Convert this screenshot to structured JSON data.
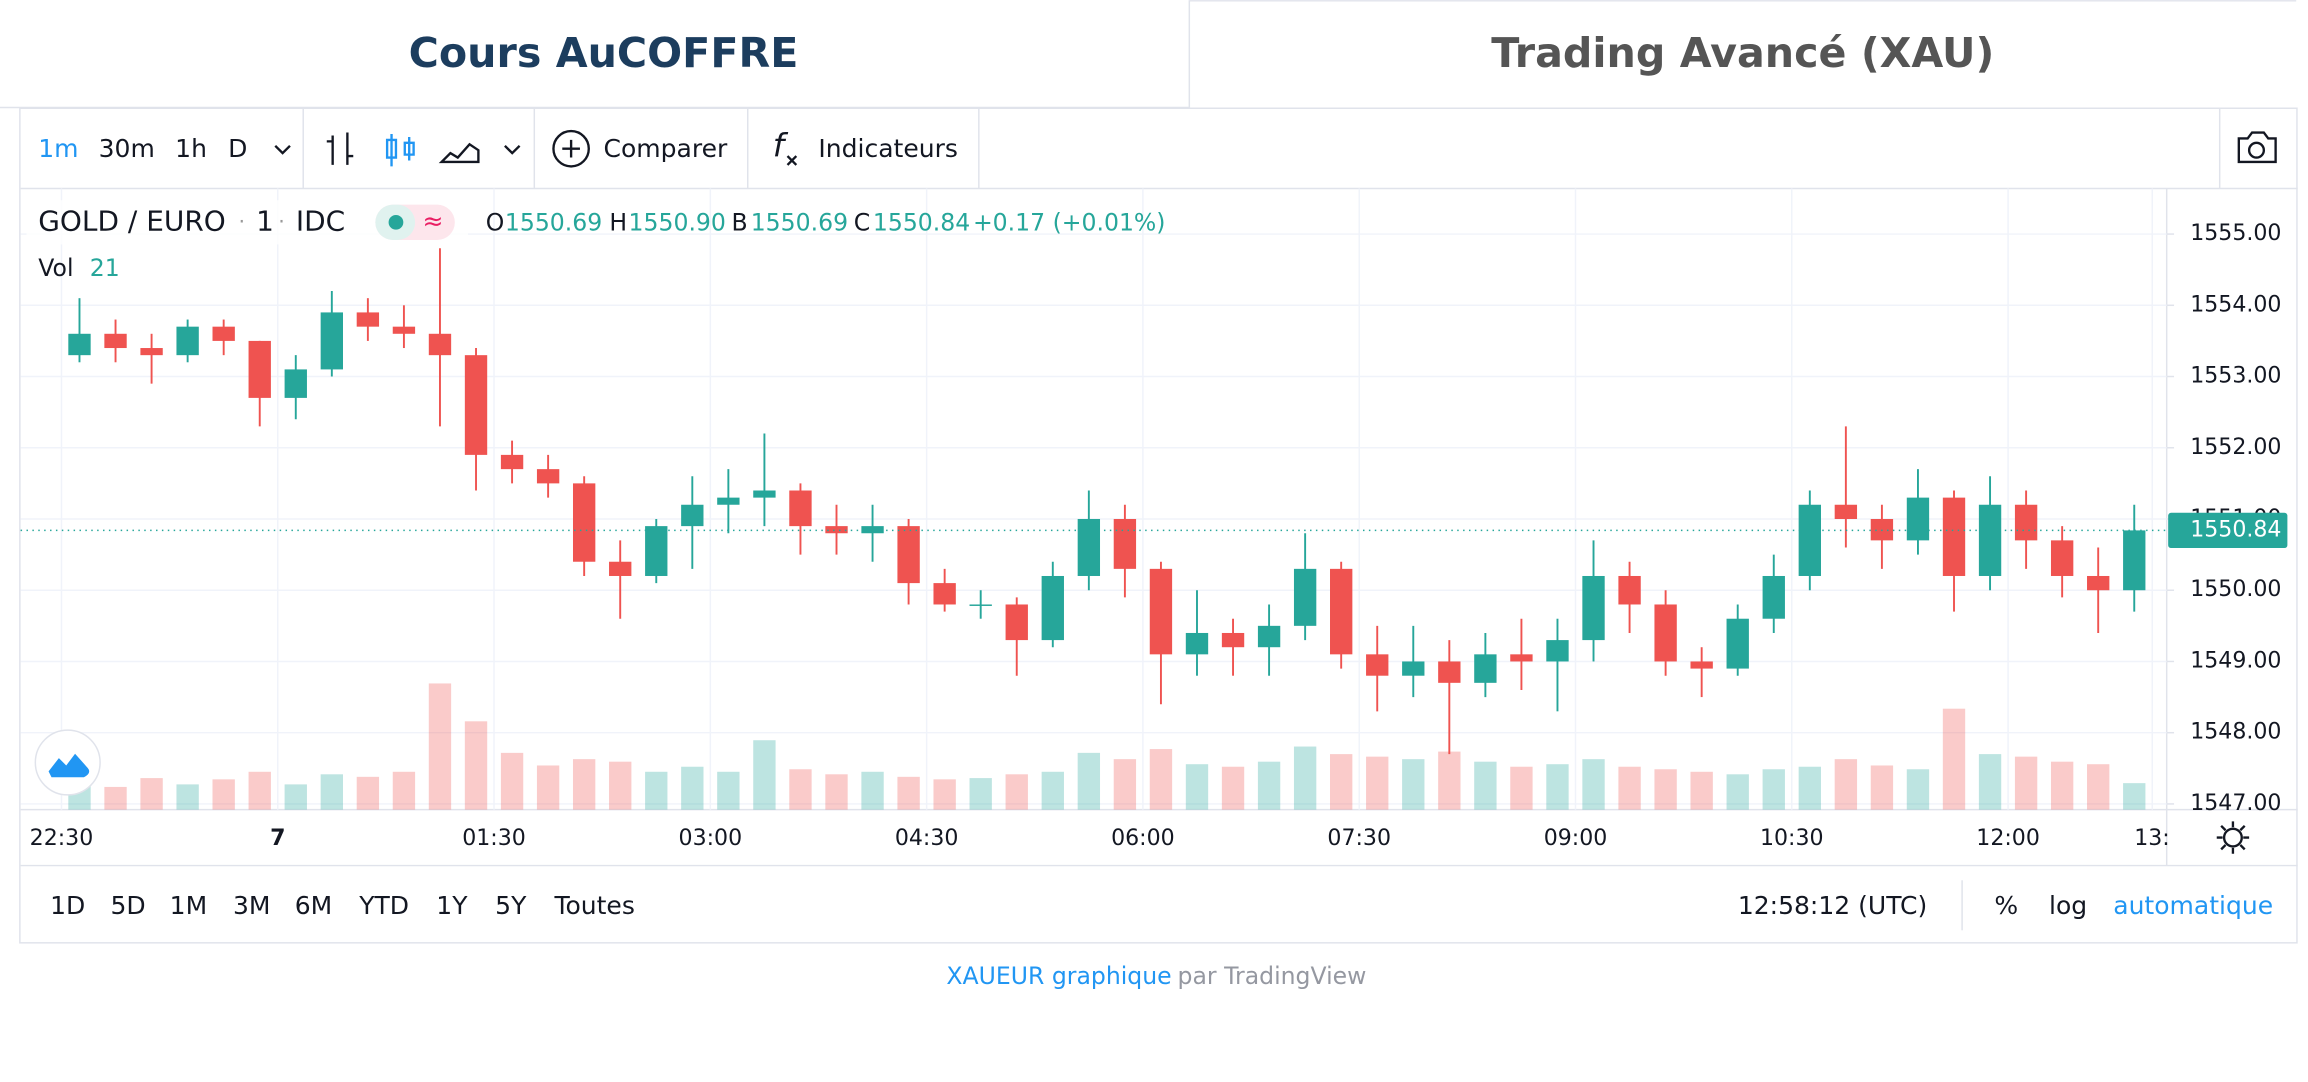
{
  "tabs": [
    "Cours AuCOFFRE",
    "Trading Avancé (XAU)"
  ],
  "toolbar": {
    "intervals": [
      "1m",
      "30m",
      "1h",
      "D"
    ],
    "compare": "Comparer",
    "indicators": "Indicateurs"
  },
  "legend": {
    "symbol": "GOLD / EURO",
    "interval": "1",
    "exchange": "IDC",
    "ohlc": [
      {
        "label": "O",
        "value": "1550.69"
      },
      {
        "label": "H",
        "value": "1550.90"
      },
      {
        "label": "B",
        "value": "1550.69"
      },
      {
        "label": "C",
        "value": "1550.84"
      }
    ],
    "change": "+0.17 (+0.01%)",
    "volume_label": "Vol"
  },
  "chart_data": {
    "type": "candlestick",
    "categories": [
      "22:30",
      "22:45",
      "23:00",
      "23:15",
      "23:30",
      "23:45",
      "00:00",
      "00:15",
      "00:30",
      "00:45",
      "01:00",
      "01:15",
      "01:30",
      "01:45",
      "02:00",
      "02:15",
      "02:30",
      "02:45",
      "03:00",
      "03:15",
      "03:30",
      "03:45",
      "04:00",
      "04:15",
      "04:30",
      "04:45",
      "05:00",
      "05:15",
      "05:30",
      "05:45",
      "06:00",
      "06:15",
      "06:30",
      "06:45",
      "07:00",
      "07:15",
      "07:30",
      "07:45",
      "08:00",
      "08:15",
      "08:30",
      "08:45",
      "09:00",
      "09:15",
      "09:30",
      "09:45",
      "10:00",
      "10:15",
      "10:30",
      "10:45",
      "11:00",
      "11:15",
      "11:30",
      "11:45",
      "12:00",
      "12:15",
      "12:30",
      "12:45"
    ],
    "open": [
      1553.3,
      1553.6,
      1553.4,
      1553.3,
      1553.7,
      1553.5,
      1552.7,
      1553.1,
      1553.9,
      1553.7,
      1553.6,
      1553.3,
      1551.9,
      1551.7,
      1551.5,
      1550.4,
      1550.2,
      1550.9,
      1551.2,
      1551.3,
      1551.4,
      1550.9,
      1550.8,
      1550.9,
      1550.1,
      1549.8,
      1549.8,
      1549.3,
      1550.2,
      1551.0,
      1550.3,
      1549.1,
      1549.4,
      1549.2,
      1549.5,
      1550.3,
      1549.1,
      1548.8,
      1549.0,
      1548.7,
      1549.1,
      1549.0,
      1549.3,
      1550.2,
      1549.8,
      1549.0,
      1548.9,
      1549.6,
      1550.2,
      1551.2,
      1551.0,
      1550.7,
      1551.3,
      1550.2,
      1551.2,
      1550.7,
      1550.2,
      1550.0
    ],
    "high": [
      1554.1,
      1553.8,
      1553.6,
      1553.8,
      1553.8,
      1553.5,
      1553.3,
      1554.2,
      1554.1,
      1554.0,
      1554.8,
      1553.4,
      1552.1,
      1551.9,
      1551.6,
      1550.7,
      1551.0,
      1551.6,
      1551.7,
      1552.2,
      1551.5,
      1551.2,
      1551.2,
      1551.0,
      1550.3,
      1550.0,
      1549.9,
      1550.4,
      1551.4,
      1551.2,
      1550.4,
      1550.0,
      1549.6,
      1549.8,
      1550.8,
      1550.4,
      1549.5,
      1549.5,
      1549.3,
      1549.4,
      1549.6,
      1549.6,
      1550.7,
      1550.4,
      1550.0,
      1549.2,
      1549.8,
      1550.5,
      1551.4,
      1552.3,
      1551.2,
      1551.7,
      1551.4,
      1551.6,
      1551.4,
      1550.9,
      1550.6,
      1551.2
    ],
    "low": [
      1553.2,
      1553.2,
      1552.9,
      1553.2,
      1553.3,
      1552.3,
      1552.4,
      1553.0,
      1553.5,
      1553.4,
      1552.3,
      1551.4,
      1551.5,
      1551.3,
      1550.2,
      1549.6,
      1550.1,
      1550.3,
      1550.8,
      1550.9,
      1550.5,
      1550.5,
      1550.4,
      1549.8,
      1549.7,
      1549.6,
      1548.8,
      1549.2,
      1550.0,
      1549.9,
      1548.4,
      1548.8,
      1548.8,
      1548.8,
      1549.3,
      1548.9,
      1548.3,
      1548.5,
      1547.7,
      1548.5,
      1548.6,
      1548.3,
      1549.0,
      1549.4,
      1548.8,
      1548.5,
      1548.8,
      1549.4,
      1550.0,
      1550.6,
      1550.3,
      1550.5,
      1549.7,
      1550.0,
      1550.3,
      1549.9,
      1549.4,
      1549.7
    ],
    "close": [
      1553.6,
      1553.4,
      1553.3,
      1553.7,
      1553.5,
      1552.7,
      1553.1,
      1553.9,
      1553.7,
      1553.6,
      1553.3,
      1551.9,
      1551.7,
      1551.5,
      1550.4,
      1550.2,
      1550.9,
      1551.2,
      1551.3,
      1551.4,
      1550.9,
      1550.8,
      1550.9,
      1550.1,
      1549.8,
      1549.8,
      1549.3,
      1550.2,
      1551.0,
      1550.3,
      1549.1,
      1549.4,
      1549.2,
      1549.5,
      1550.3,
      1549.1,
      1548.8,
      1549.0,
      1548.7,
      1549.1,
      1549.0,
      1549.3,
      1550.2,
      1549.8,
      1549.0,
      1548.9,
      1549.6,
      1550.2,
      1551.2,
      1551.0,
      1550.7,
      1551.3,
      1550.2,
      1551.2,
      1550.7,
      1550.2,
      1550.0,
      1550.84
    ],
    "volume": [
      22,
      18,
      25,
      20,
      24,
      30,
      20,
      28,
      26,
      30,
      100,
      70,
      45,
      35,
      40,
      38,
      30,
      34,
      30,
      55,
      32,
      28,
      30,
      26,
      24,
      25,
      28,
      30,
      45,
      40,
      48,
      36,
      34,
      38,
      50,
      44,
      42,
      40,
      46,
      38,
      34,
      36,
      40,
      34,
      32,
      30,
      28,
      32,
      34,
      40,
      35,
      32,
      80,
      44,
      42,
      38,
      36,
      21
    ],
    "up_color": "#26a69a",
    "down_color": "#ef5350",
    "ylim": [
      1546.92,
      1555.64
    ],
    "vlim": [
      0,
      140
    ],
    "xlim": [
      "22:13",
      "13:06"
    ],
    "yticks": [
      {
        "value": 1547,
        "label": "1547.00"
      },
      {
        "value": 1548,
        "label": "1548.00"
      },
      {
        "value": 1549,
        "label": "1549.00"
      },
      {
        "value": 1550,
        "label": "1550.00"
      },
      {
        "value": 1551,
        "label": "1551.00"
      },
      {
        "value": 1552,
        "label": "1552.00"
      },
      {
        "value": 1553,
        "label": "1553.00"
      },
      {
        "value": 1554,
        "label": "1554.00"
      },
      {
        "value": 1555,
        "label": "1555.00"
      }
    ],
    "xticks": [
      {
        "value": "22:30",
        "label": "22:30"
      },
      {
        "value": "00:00",
        "label": "7"
      },
      {
        "value": "01:30",
        "label": "01:30"
      },
      {
        "value": "03:00",
        "label": "03:00"
      },
      {
        "value": "04:30",
        "label": "04:30"
      },
      {
        "value": "06:00",
        "label": "06:00"
      },
      {
        "value": "07:30",
        "label": "07:30"
      },
      {
        "value": "09:00",
        "label": "09:00"
      },
      {
        "value": "10:30",
        "label": "10:30"
      },
      {
        "value": "12:00",
        "label": "12:00"
      },
      {
        "value": "13:00",
        "label": "13:"
      }
    ],
    "grid": true
  },
  "ranges": [
    "1D",
    "5D",
    "1M",
    "3M",
    "6M",
    "YTD",
    "1Y",
    "5Y",
    "Toutes"
  ],
  "clock": "12:58:12 (UTC)",
  "scale_options": [
    "%",
    "log",
    "automatique"
  ],
  "footer": {
    "link": "XAUEUR graphique",
    "by": "par TradingView"
  }
}
